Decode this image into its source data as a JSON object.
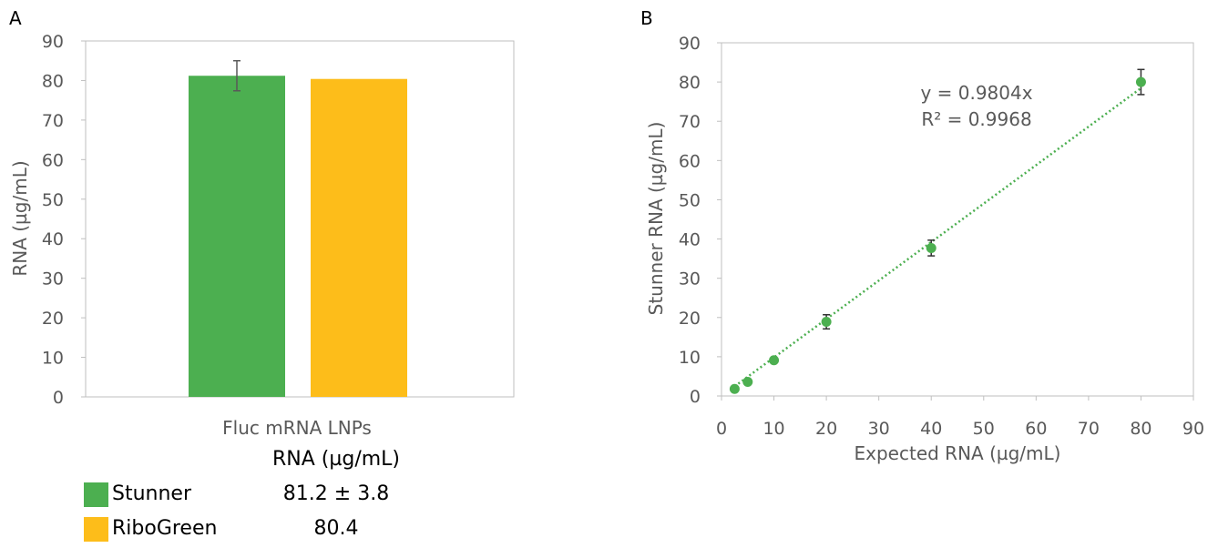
{
  "panels": {
    "a": "A",
    "b": "B"
  },
  "colors": {
    "stunner": "#4caf50",
    "ribogreen": "#fdbd1a",
    "axis": "#bfbfbf",
    "text": "#595959",
    "error": "#595959",
    "trend": "#4caf50"
  },
  "chart_data": [
    {
      "type": "bar",
      "title": "",
      "xlabel": "Fluc mRNA LNPs",
      "ylabel": "RNA (µg/mL)",
      "ylim": [
        0,
        90
      ],
      "yticks": [
        "0",
        "10",
        "20",
        "30",
        "40",
        "50",
        "60",
        "70",
        "80",
        "90"
      ],
      "categories": [
        "Fluc mRNA LNPs"
      ],
      "grid": false,
      "series": [
        {
          "name": "Stunner",
          "values": [
            81.2
          ],
          "error": [
            3.8
          ],
          "color": "#4caf50"
        },
        {
          "name": "RiboGreen",
          "values": [
            80.4
          ],
          "color": "#fdbd1a"
        }
      ],
      "data_table": {
        "header": "RNA (µg/mL)",
        "rows": [
          {
            "name": "Stunner",
            "value": "81.2 ± 3.8"
          },
          {
            "name": "RiboGreen",
            "value": "80.4"
          }
        ]
      }
    },
    {
      "type": "scatter",
      "title": "",
      "xlabel": "Expected RNA (µg/mL)",
      "ylabel": "Stunner RNA (µg/mL)",
      "xlim": [
        0,
        90
      ],
      "ylim": [
        0,
        90
      ],
      "xticks": [
        "0",
        "10",
        "20",
        "30",
        "40",
        "50",
        "60",
        "70",
        "80",
        "90"
      ],
      "yticks": [
        "0",
        "10",
        "20",
        "30",
        "40",
        "50",
        "60",
        "70",
        "80",
        "90"
      ],
      "grid": false,
      "points": {
        "x": [
          2.5,
          5,
          10,
          20,
          40,
          80
        ],
        "y": [
          1.8,
          3.6,
          9.1,
          18.9,
          37.7,
          80.0
        ],
        "error": [
          0.3,
          0.5,
          0.5,
          1.8,
          2.0,
          3.2
        ]
      },
      "trendline": {
        "slope": 0.9804,
        "intercept": 0,
        "x_range": [
          2.5,
          80
        ],
        "style": "dotted"
      },
      "annotations": [
        "y = 0.9804x",
        "R² = 0.9968"
      ]
    }
  ]
}
